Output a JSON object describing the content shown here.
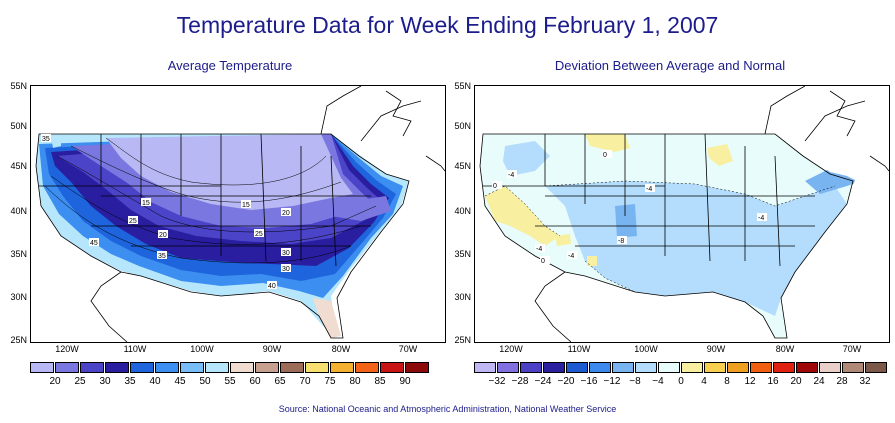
{
  "title": "Temperature Data for Week Ending February 1, 2007",
  "source": "Source:  National Oceanic and Atmospheric Administration, National Weather Service",
  "left_map": {
    "subtitle": "Average Temperature",
    "contour_labels": [
      "15",
      "15",
      "20",
      "25",
      "20",
      "25",
      "30",
      "35",
      "30",
      "35",
      "40",
      "45"
    ],
    "legend_labels": [
      "20",
      "25",
      "30",
      "35",
      "40",
      "45",
      "50",
      "55",
      "60",
      "65",
      "70",
      "75",
      "80",
      "85",
      "90"
    ],
    "legend_colors": [
      "#b8b8f4",
      "#7a78e0",
      "#4c44c8",
      "#2a1ea0",
      "#1e64dc",
      "#3c8ef0",
      "#78bcf8",
      "#b6e6fc",
      "#f0dcd0",
      "#c8a090",
      "#9c6c58",
      "#f8e070",
      "#f4b030",
      "#f46418",
      "#c81414",
      "#8c0a0a"
    ]
  },
  "right_map": {
    "subtitle": "Deviation Between Average and Normal",
    "contour_labels": [
      "-4",
      "0",
      "0",
      "-4",
      "-4",
      "-4",
      "-8",
      "-4",
      "0"
    ],
    "legend_labels": [
      "−32",
      "−28",
      "−24",
      "−20",
      "−16",
      "−12",
      "−8",
      "−4",
      "0",
      "4",
      "8",
      "12",
      "16",
      "20",
      "24",
      "28",
      "32"
    ],
    "legend_colors": [
      "#c0b8f4",
      "#8070e0",
      "#4c40c4",
      "#2a20a0",
      "#1e5ad0",
      "#3c88ec",
      "#78b4f0",
      "#b4dcfc",
      "#e8fcfc",
      "#f8f0a0",
      "#f8d050",
      "#f0a020",
      "#f06010",
      "#e02010",
      "#a00808",
      "#e8d0c8",
      "#b08878",
      "#7c5848"
    ]
  },
  "lat_labels": [
    "55N",
    "50N",
    "45N",
    "40N",
    "35N",
    "30N",
    "25N"
  ],
  "lon_labels": [
    "120W",
    "110W",
    "100W",
    "90W",
    "80W",
    "70W"
  ]
}
